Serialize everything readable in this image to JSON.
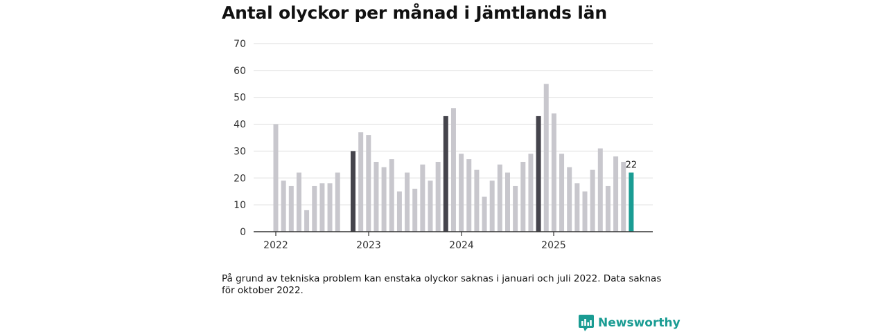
{
  "title": "Antal olyckor per månad i Jämtlands län",
  "note": "På grund av tekniska problem kan enstaka olyckor saknas i januari och juli 2022. Data saknas för oktober 2022.",
  "brand": {
    "name": "Newsworthy",
    "icon": "newsworthy-logo-icon"
  },
  "colors": {
    "bar": "#c8c7cd",
    "january": "#45444c",
    "latest": "#1a9c93",
    "grid": "#dddddd",
    "axis": "#333333"
  },
  "chart_data": {
    "type": "bar",
    "title": "Antal olyckor per månad i Jämtlands län",
    "xlabel": "",
    "ylabel": "",
    "ylim": [
      0,
      70
    ],
    "yticks": [
      0,
      10,
      20,
      30,
      40,
      50,
      60,
      70
    ],
    "xtick_labels": [
      "2022",
      "2023",
      "2024",
      "2025"
    ],
    "grid": true,
    "highlight": "January bars dark; latest month teal with value label",
    "series": [
      {
        "name": "2022",
        "values": [
          40,
          19,
          17,
          22,
          8,
          17,
          18,
          18,
          22,
          null,
          30,
          37
        ]
      },
      {
        "name": "2023",
        "values": [
          36,
          26,
          24,
          27,
          15,
          22,
          16,
          25,
          19,
          26,
          43,
          46
        ]
      },
      {
        "name": "2024",
        "values": [
          29,
          27,
          23,
          13,
          19,
          25,
          22,
          17,
          26,
          29,
          43,
          55
        ]
      },
      {
        "name": "2025",
        "values": [
          44,
          29,
          24,
          18,
          15,
          23,
          31,
          17,
          28,
          26,
          22
        ]
      }
    ],
    "latest_label": "22"
  }
}
